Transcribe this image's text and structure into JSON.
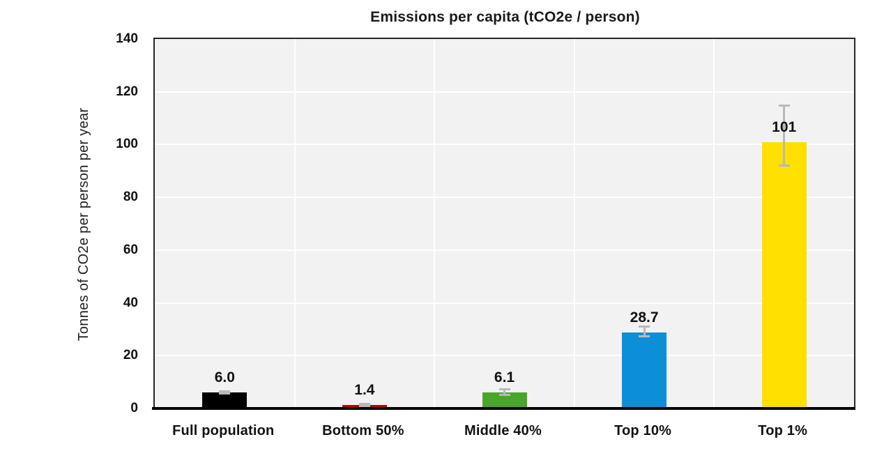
{
  "chart_data": {
    "type": "bar",
    "title": "Emissions per capita (tCO2e / person)",
    "ylabel": "Tonnes of CO2e per person per year",
    "xlabel": "",
    "categories": [
      "Full population",
      "Bottom 50%",
      "Middle 40%",
      "Top 10%",
      "Top 1%"
    ],
    "values": [
      6.0,
      1.4,
      6.1,
      28.7,
      101
    ],
    "value_labels": [
      "6.0",
      "1.4",
      "6.1",
      "28.7",
      "101"
    ],
    "series": [
      {
        "name": "Emissions per capita",
        "values": [
          6.0,
          1.4,
          6.1,
          28.7,
          101
        ],
        "error_plus": [
          0.5,
          0.5,
          1.2,
          2.5,
          14
        ],
        "error_minus": [
          0.5,
          0.5,
          1.2,
          1.6,
          9
        ]
      }
    ],
    "bar_colors": [
      "#000000",
      "#c00000",
      "#4aa52d",
      "#0c8fd6",
      "#ffe000"
    ],
    "error_bar_color": "#b9b9b9",
    "ylim": [
      0,
      140
    ],
    "yticks": [
      0,
      20,
      40,
      60,
      80,
      100,
      120,
      140
    ],
    "grid": true,
    "gridline_color": "#ffffff",
    "plot_background": "#f2f2f2",
    "plot_border_color": "#262626",
    "axis_line_color": "#000000",
    "text_color": "#111111",
    "legend_position": "none"
  }
}
